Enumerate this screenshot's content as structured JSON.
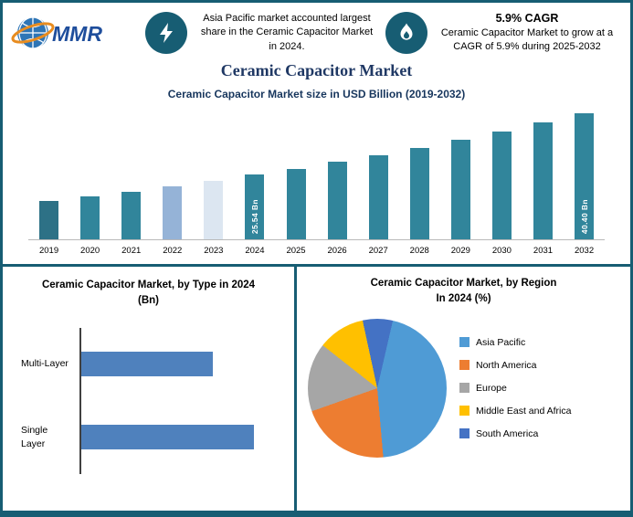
{
  "colors": {
    "frame_teal": "#175d73",
    "bar_teal": "#31859b",
    "title_navy": "#1f3864",
    "type_bar_blue": "#4f81bd"
  },
  "header": {
    "logo_text": "MMR",
    "left_callout": "Asia Pacific market accounted largest share in the Ceramic Capacitor Market in 2024.",
    "right_callout_title": "5.9% CAGR",
    "right_callout_text": "Ceramic Capacitor Market to grow at a CAGR of 5.9% during 2025-2032"
  },
  "title": "Ceramic Capacitor Market",
  "chart_data": [
    {
      "id": "market-size-bar",
      "type": "bar",
      "title": "Ceramic Capacitor Market size in USD Billion (2019-2032)",
      "categories": [
        "2019",
        "2020",
        "2021",
        "2022",
        "2023",
        "2024",
        "2025",
        "2026",
        "2027",
        "2028",
        "2029",
        "2030",
        "2031",
        "2032"
      ],
      "values": [
        19.18,
        20.31,
        21.51,
        22.78,
        24.12,
        25.54,
        27.05,
        28.64,
        30.33,
        32.12,
        34.02,
        36.03,
        38.15,
        40.4
      ],
      "bar_colors": [
        "#2d7186",
        "#31859b",
        "#31859b",
        "#95b3d7",
        "#dce6f1",
        "#31859b",
        "#31859b",
        "#31859b",
        "#31859b",
        "#31859b",
        "#31859b",
        "#31859b",
        "#31859b",
        "#31859b"
      ],
      "bar_labels": {
        "2024": "25.54 Bn",
        "2032": "40.40 Bn"
      },
      "ylabel": "USD Billion",
      "ylim": [
        10,
        40.4
      ],
      "grid": false,
      "legend": "none"
    },
    {
      "id": "type-bar",
      "type": "bar",
      "orientation": "horizontal",
      "title": "Ceramic Capacitor Market, by Type in 2024 (Bn)",
      "categories": [
        "Multi-Layer",
        "Single Layer"
      ],
      "values": [
        11.0,
        14.5
      ],
      "xlim": [
        0,
        16
      ],
      "grid": false,
      "legend": "none"
    },
    {
      "id": "region-pie",
      "type": "pie",
      "title_line1": "Ceramic Capacitor Market, by Region",
      "title_line2": "In 2024 (%)",
      "start_angle_deg": 13,
      "legend_position": "right",
      "segments": [
        {
          "label": "Asia Pacific",
          "value": 45,
          "color": "#4f9bd5"
        },
        {
          "label": "North America",
          "value": 21,
          "color": "#ed7d31"
        },
        {
          "label": "Europe",
          "value": 16,
          "color": "#a6a6a6"
        },
        {
          "label": "Middle East and Africa",
          "value": 11,
          "color": "#ffc000"
        },
        {
          "label": "South America",
          "value": 7,
          "color": "#4472c4"
        }
      ]
    }
  ]
}
